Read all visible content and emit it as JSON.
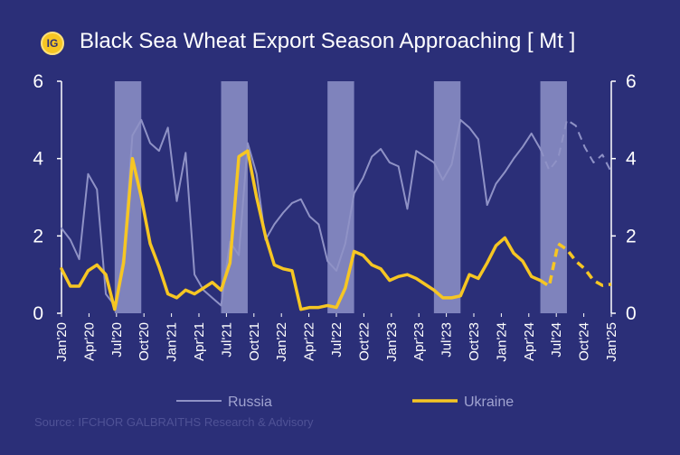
{
  "logo_text": "IG",
  "source": "Source: IFCHOR GALBRAITHS Research & Advisory",
  "chart_data": {
    "type": "line",
    "title": "Black Sea Wheat Export Season Approaching [ Mt ]",
    "xlabel": "",
    "ylabel": "",
    "ylim": [
      0,
      6
    ],
    "yticks": [
      "0",
      "2",
      "4",
      "6"
    ],
    "x_labels": [
      "Jan'20",
      "Apr'20",
      "Jul'20",
      "Oct'20",
      "Jan'21",
      "Apr'21",
      "Jul'21",
      "Oct'21",
      "Jan'22",
      "Apr'22",
      "Jul'22",
      "Oct'22",
      "Jan'23",
      "Apr'23",
      "Jul'23",
      "Oct'23",
      "Jan'24",
      "Apr'24",
      "Jul'24",
      "Oct'24",
      "Jan'25"
    ],
    "shaded_seasons": [
      [
        6,
        9
      ],
      [
        18,
        21
      ],
      [
        30,
        33
      ],
      [
        42,
        45
      ],
      [
        54,
        57
      ]
    ],
    "forecast_start_index": 54,
    "series": [
      {
        "name": "Russia",
        "color": "#8f92c6",
        "values": [
          2.2,
          1.9,
          1.4,
          3.6,
          3.2,
          0.5,
          0.2,
          1.5,
          4.6,
          5.0,
          4.4,
          4.2,
          4.8,
          2.9,
          4.15,
          1.0,
          0.6,
          0.4,
          0.2,
          1.85,
          1.5,
          4.4,
          3.6,
          1.9,
          2.3,
          2.6,
          2.85,
          2.95,
          2.5,
          2.3,
          1.35,
          1.1,
          1.8,
          3.1,
          3.5,
          4.05,
          4.25,
          3.9,
          3.8,
          2.7,
          4.2,
          4.05,
          3.9,
          3.45,
          3.85,
          5.0,
          4.8,
          4.5,
          2.8,
          3.35,
          3.65,
          4.0,
          4.3,
          4.65,
          4.25,
          3.7,
          4.0,
          5.0,
          4.85,
          4.3,
          3.9,
          4.1,
          3.65
        ]
      },
      {
        "name": "Ukraine",
        "color": "#f6c623",
        "values": [
          1.15,
          0.7,
          0.7,
          1.1,
          1.25,
          1.0,
          0.1,
          1.3,
          4.0,
          3.0,
          1.8,
          1.2,
          0.5,
          0.4,
          0.6,
          0.5,
          0.65,
          0.8,
          0.6,
          1.3,
          4.05,
          4.2,
          3.0,
          2.0,
          1.25,
          1.15,
          1.1,
          0.1,
          0.15,
          0.15,
          0.2,
          0.15,
          0.65,
          1.6,
          1.5,
          1.25,
          1.15,
          0.85,
          0.95,
          1.0,
          0.9,
          0.75,
          0.6,
          0.4,
          0.4,
          0.45,
          1.0,
          0.9,
          1.3,
          1.75,
          1.95,
          1.55,
          1.35,
          0.95,
          0.85,
          0.7,
          1.8,
          1.65,
          1.35,
          1.15,
          0.85,
          0.72,
          0.75
        ]
      }
    ]
  }
}
